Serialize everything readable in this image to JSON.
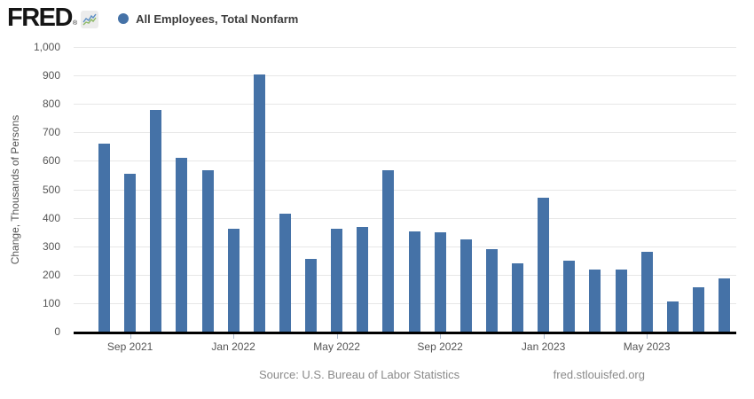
{
  "header": {
    "logo_text": "FRED",
    "registered_mark": "®",
    "legend": {
      "label": "All Employees, Total Nonfarm",
      "marker_color": "#4572a7"
    }
  },
  "chart_data": {
    "type": "bar",
    "title": "All Employees, Total Nonfarm",
    "ylabel": "Change, Thousands of Persons",
    "xlabel": "",
    "ylim": [
      0,
      1000
    ],
    "grid": true,
    "legend_position": "top-left",
    "bar_color": "#4572a7",
    "gridline_color": "#e7e7e7",
    "y_ticks": [
      {
        "value": 0,
        "label": "0"
      },
      {
        "value": 100,
        "label": "100"
      },
      {
        "value": 200,
        "label": "200"
      },
      {
        "value": 300,
        "label": "300"
      },
      {
        "value": 400,
        "label": "400"
      },
      {
        "value": 500,
        "label": "500"
      },
      {
        "value": 600,
        "label": "600"
      },
      {
        "value": 700,
        "label": "700"
      },
      {
        "value": 800,
        "label": "800"
      },
      {
        "value": 900,
        "label": "900"
      },
      {
        "value": 1000,
        "label": "1,000"
      }
    ],
    "x": [
      "Aug 2021",
      "Sep 2021",
      "Oct 2021",
      "Nov 2021",
      "Dec 2021",
      "Jan 2022",
      "Feb 2022",
      "Mar 2022",
      "Apr 2022",
      "May 2022",
      "Jun 2022",
      "Jul 2022",
      "Aug 2022",
      "Sep 2022",
      "Oct 2022",
      "Nov 2022",
      "Dec 2022",
      "Jan 2023",
      "Feb 2023",
      "Mar 2023",
      "Apr 2023",
      "May 2023",
      "Jun 2023",
      "Jul 2023",
      "Aug 2023"
    ],
    "values": [
      660,
      555,
      780,
      612,
      568,
      360,
      904,
      414,
      254,
      360,
      368,
      568,
      352,
      350,
      324,
      290,
      240,
      472,
      248,
      217,
      217,
      281,
      105,
      157,
      187
    ],
    "x_ticks": [
      {
        "index": 1,
        "label": "Sep 2021"
      },
      {
        "index": 5,
        "label": "Jan 2022"
      },
      {
        "index": 9,
        "label": "May 2022"
      },
      {
        "index": 13,
        "label": "Sep 2022"
      },
      {
        "index": 17,
        "label": "Jan 2023"
      },
      {
        "index": 21,
        "label": "May 2023"
      }
    ]
  },
  "footer": {
    "source": "Source: U.S. Bureau of Labor Statistics",
    "site": "fred.stlouisfed.org"
  }
}
